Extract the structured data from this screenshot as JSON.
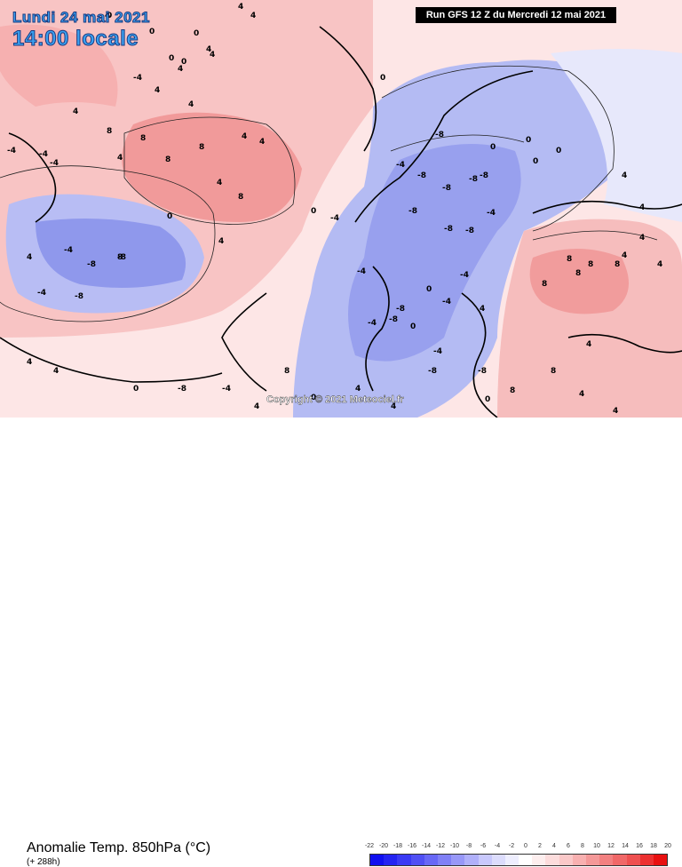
{
  "header": {
    "date": "Lundi 24 mai 2021",
    "time": "14:00 locale",
    "run": "Run GFS 12 Z du Mercredi 12 mai 2021"
  },
  "copyright": "Copyright © 2021 Meteociel.fr",
  "footer": {
    "title": "Anomalie Temp. 850hPa (°C)",
    "subtitle": "(+ 288h)"
  },
  "legend": {
    "labels": [
      "-22",
      "-20",
      "-18",
      "-16",
      "-14",
      "-12",
      "-10",
      "-8",
      "-6",
      "-4",
      "-2",
      "0",
      "2",
      "4",
      "6",
      "8",
      "10",
      "12",
      "14",
      "16",
      "18",
      "20"
    ],
    "colors": [
      "#1010f0",
      "#2424f2",
      "#3a3af4",
      "#5050f4",
      "#6868f6",
      "#8080f6",
      "#9898f8",
      "#b0b0fa",
      "#c8c8fc",
      "#dcdcfc",
      "#eeeefe",
      "#ffffff",
      "#fdeeee",
      "#fcdcdc",
      "#fac8c8",
      "#f8b0b0",
      "#f49898",
      "#f28080",
      "#f06868",
      "#ee5050",
      "#ec3030",
      "#e81010"
    ]
  },
  "map_labels": [
    "4",
    "4",
    "0",
    "0",
    "4",
    "4",
    "0",
    "-4",
    "0",
    "4",
    "-4",
    "4",
    "-4",
    "8",
    "4",
    "8",
    "4",
    "8",
    "4",
    "4",
    "4",
    "4",
    "8",
    "4",
    "0",
    "-4",
    "8",
    "0",
    "-4",
    "4",
    "-4",
    "-8",
    "-8",
    "-8",
    "0",
    "-4",
    "-8",
    "-8",
    "-8",
    "-8",
    "-8",
    "-8",
    "-8",
    "-4",
    "-8",
    "-4",
    "-4",
    "-8",
    "0",
    "-4",
    "-4",
    "-4",
    "-8",
    "-8",
    "-8",
    "0",
    "8",
    "8",
    "8",
    "8",
    "8",
    "8",
    "8",
    "4",
    "4",
    "4",
    "4",
    "4",
    "4",
    "0",
    "0",
    "0",
    "0",
    "4",
    "4",
    "8",
    "-4",
    "0",
    "-8",
    "8",
    "0",
    "4",
    "4",
    "0",
    "-4",
    "4",
    "4",
    "4",
    "4",
    "0",
    "4"
  ],
  "colors": {
    "cold": "#a9b4f2",
    "very_cold": "#8d95ec",
    "warm": "#f6b9b9",
    "very_warm": "#ef9595",
    "light_cold": "#d9dcfa",
    "light_warm": "#fbe0e0"
  }
}
